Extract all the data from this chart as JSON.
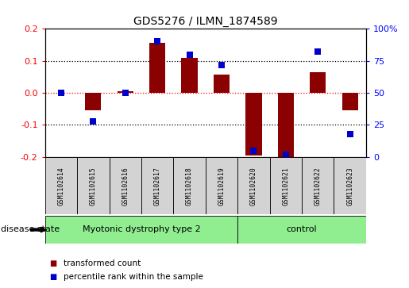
{
  "title": "GDS5276 / ILMN_1874589",
  "samples": [
    "GSM1102614",
    "GSM1102615",
    "GSM1102616",
    "GSM1102617",
    "GSM1102618",
    "GSM1102619",
    "GSM1102620",
    "GSM1102621",
    "GSM1102622",
    "GSM1102623"
  ],
  "transformed_count": [
    0.0,
    -0.055,
    0.005,
    0.155,
    0.108,
    0.057,
    -0.195,
    -0.205,
    0.065,
    -0.055
  ],
  "percentile_rank": [
    50,
    28,
    50,
    90,
    80,
    72,
    5,
    2,
    82,
    18
  ],
  "disease_groups": [
    {
      "label": "Myotonic dystrophy type 2",
      "start": 0,
      "end": 5,
      "color": "#90EE90"
    },
    {
      "label": "control",
      "start": 6,
      "end": 9,
      "color": "#90EE90"
    }
  ],
  "ylim_left": [
    -0.2,
    0.2
  ],
  "ylim_right": [
    0,
    100
  ],
  "yticks_left": [
    -0.2,
    -0.1,
    0.0,
    0.1,
    0.2
  ],
  "yticks_right": [
    0,
    25,
    50,
    75,
    100
  ],
  "bar_color": "#8B0000",
  "dot_color": "#0000CC",
  "legend_bar_label": "transformed count",
  "legend_dot_label": "percentile rank within the sample",
  "disease_state_label": "disease state",
  "hlines_black": [
    -0.1,
    0.1
  ],
  "hline_red": 0.0,
  "background_color": "#ffffff",
  "tick_label_bg": "#d3d3d3",
  "bar_width": 0.5,
  "dot_size": 28
}
